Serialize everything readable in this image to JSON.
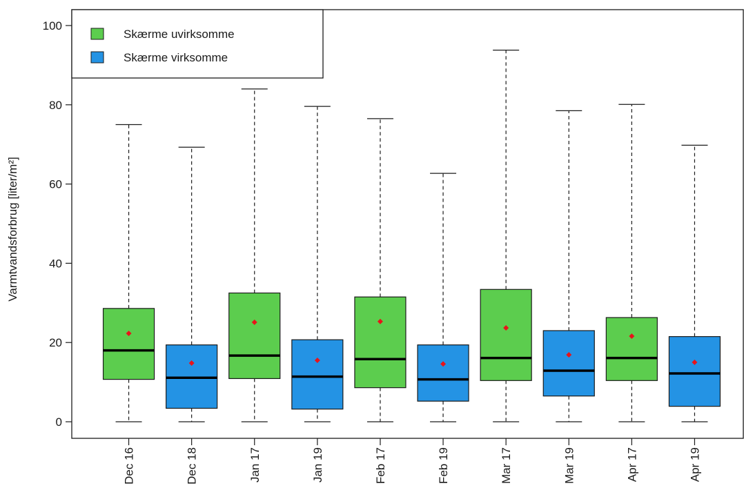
{
  "chart_data": {
    "type": "boxplot",
    "title": "",
    "xlabel": "",
    "ylabel": "Varmtvandsforbrug [liter/m²]",
    "ylim": [
      -4,
      104
    ],
    "yticks": [
      0,
      20,
      40,
      60,
      80,
      100
    ],
    "grid": false,
    "legend_position": "top-left",
    "series": [
      {
        "name": "Skærme uvirksomme",
        "color": "#5ccd4e"
      },
      {
        "name": "Skærme virksomme",
        "color": "#2493e4"
      }
    ],
    "boxes": [
      {
        "label": "Dec 16",
        "series": 0,
        "min": 0,
        "q1": 10.7,
        "median": 18.0,
        "q3": 28.6,
        "max": 75.0,
        "mean": 22.3
      },
      {
        "label": "Dec 18",
        "series": 1,
        "min": 0,
        "q1": 3.4,
        "median": 11.1,
        "q3": 19.4,
        "max": 69.3,
        "mean": 14.8
      },
      {
        "label": "Jan 17",
        "series": 0,
        "min": 0,
        "q1": 10.9,
        "median": 16.7,
        "q3": 32.5,
        "max": 84.0,
        "mean": 25.1
      },
      {
        "label": "Jan 19",
        "series": 1,
        "min": 0,
        "q1": 3.2,
        "median": 11.4,
        "q3": 20.7,
        "max": 79.6,
        "mean": 15.5
      },
      {
        "label": "Feb 17",
        "series": 0,
        "min": 0,
        "q1": 8.6,
        "median": 15.8,
        "q3": 31.5,
        "max": 76.5,
        "mean": 25.3
      },
      {
        "label": "Feb 19",
        "series": 1,
        "min": 0,
        "q1": 5.2,
        "median": 10.7,
        "q3": 19.4,
        "max": 62.7,
        "mean": 14.6
      },
      {
        "label": "Mar 17",
        "series": 0,
        "min": 0,
        "q1": 10.4,
        "median": 16.1,
        "q3": 33.4,
        "max": 93.8,
        "mean": 23.7
      },
      {
        "label": "Mar 19",
        "series": 1,
        "min": 0,
        "q1": 6.5,
        "median": 12.9,
        "q3": 23.0,
        "max": 78.5,
        "mean": 16.9
      },
      {
        "label": "Apr 17",
        "series": 0,
        "min": 0,
        "q1": 10.4,
        "median": 16.1,
        "q3": 26.3,
        "max": 80.1,
        "mean": 21.6
      },
      {
        "label": "Apr 19",
        "series": 1,
        "min": 0,
        "q1": 3.9,
        "median": 12.2,
        "q3": 21.5,
        "max": 69.8,
        "mean": 15.0
      }
    ],
    "mean_marker_color": "#e8141a"
  }
}
